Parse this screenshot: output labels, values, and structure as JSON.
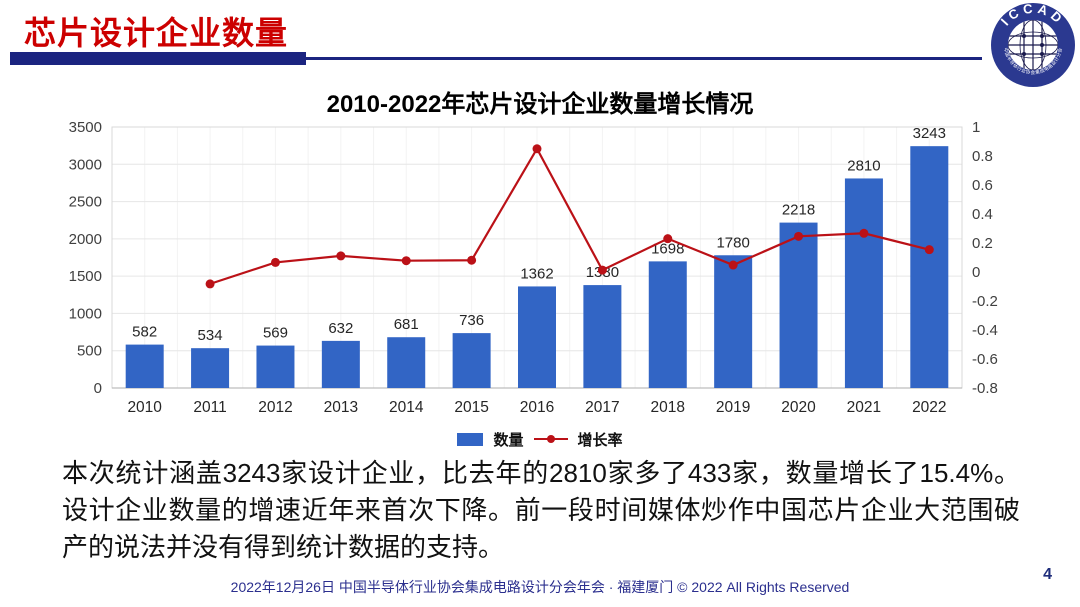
{
  "header": {
    "title": "芯片设计企业数量",
    "logo": {
      "top_text": "ICCAD",
      "ring_text": "中国半导体行业协会集成电路设计分会"
    }
  },
  "colors": {
    "title_red": "#cc0000",
    "accent_navy": "#1b2480",
    "bar_blue": "#3265c5",
    "line_red": "#bb1117",
    "footer_navy": "#2b2f8e"
  },
  "chart_data": {
    "type": "bar",
    "title": "2010-2022年芯片设计企业数量增长情况",
    "categories": [
      "2010",
      "2011",
      "2012",
      "2013",
      "2014",
      "2015",
      "2016",
      "2017",
      "2018",
      "2019",
      "2020",
      "2021",
      "2022"
    ],
    "series": [
      {
        "name": "数量",
        "type": "bar",
        "color": "#3265c5",
        "values": [
          582,
          534,
          569,
          632,
          681,
          736,
          1362,
          1380,
          1698,
          1780,
          2218,
          2810,
          3243
        ]
      },
      {
        "name": "增长率",
        "type": "line",
        "color": "#bb1117",
        "axis": "right",
        "values": [
          null,
          -0.082,
          0.066,
          0.111,
          0.078,
          0.081,
          0.85,
          0.013,
          0.23,
          0.048,
          0.246,
          0.267,
          0.154
        ]
      }
    ],
    "left_axis": {
      "min": 0,
      "max": 3500,
      "step": 500,
      "ticks": [
        "0",
        "500",
        "1000",
        "1500",
        "2000",
        "2500",
        "3000",
        "3500"
      ]
    },
    "right_axis": {
      "min": -0.8,
      "max": 1,
      "step": 0.2,
      "ticks": [
        "1",
        "0.8",
        "0.6",
        "0.4",
        "0.2",
        "0",
        "-0.2",
        "-0.4",
        "-0.6",
        "-0.8"
      ]
    },
    "bar_labels_shown": true,
    "grid": true,
    "legend_position": "bottom"
  },
  "body": {
    "paragraph": "本次统计涵盖3243家设计企业，比去年的2810家多了433家，数量增长了15.4%。设计企业数量的增速近年来首次下降。前一段时间媒体炒作中国芯片企业大范围破产的说法并没有得到统计数据的支持。"
  },
  "footer": {
    "text": "2022年12月26日 中国半导体行业协会集成电路设计分会年会 · 福建厦门 © 2022 All Rights Reserved",
    "page_number": "4"
  }
}
